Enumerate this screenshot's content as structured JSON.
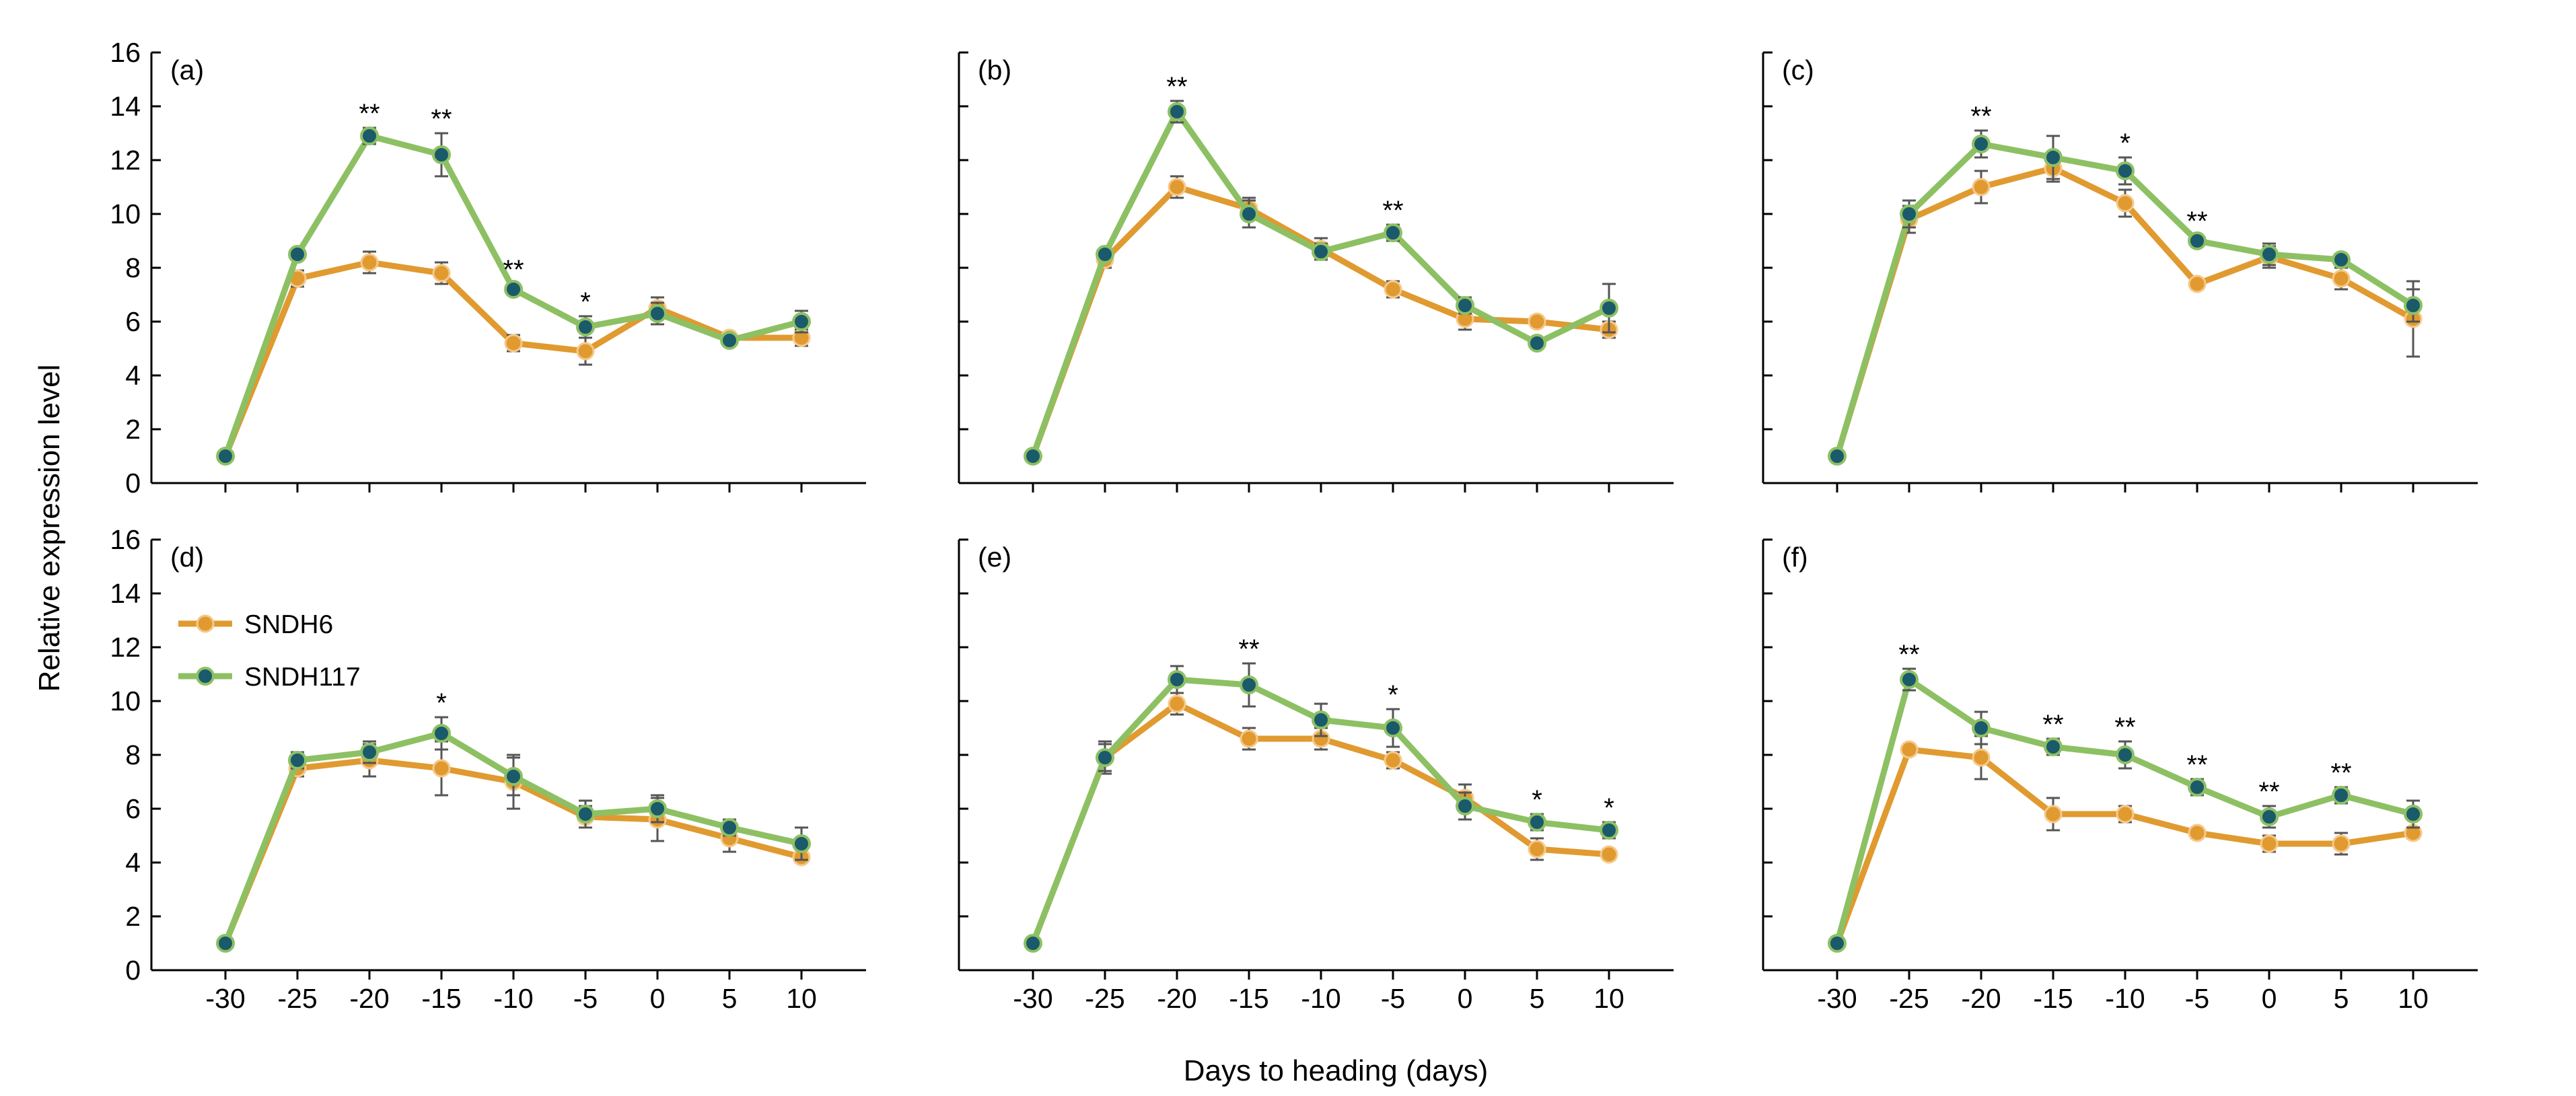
{
  "figure": {
    "ylabel": "Relative expression level",
    "xlabel": "Days to heading (days)"
  },
  "legend": [
    {
      "name": "SNDH6",
      "color": "#E09A30"
    },
    {
      "name": "SNDH117",
      "color": "#8DC063",
      "marker": "#1B5A6B"
    }
  ],
  "chart_data": [
    {
      "type": "line",
      "panel": "(a)",
      "x": [
        -30,
        -25,
        -20,
        -15,
        -10,
        -5,
        0,
        5,
        10
      ],
      "xticks": [
        "-30",
        "-25",
        "-20",
        "-15",
        "-10",
        "-5",
        "0",
        "5",
        "10"
      ],
      "ylim": [
        0,
        16
      ],
      "yticks": [
        0,
        2,
        4,
        6,
        8,
        10,
        12,
        14,
        16
      ],
      "series": [
        {
          "name": "SNDH6",
          "values": [
            1.0,
            7.6,
            8.2,
            7.8,
            5.2,
            4.9,
            6.5,
            5.4,
            5.4
          ],
          "errors": [
            0.1,
            0.3,
            0.4,
            0.4,
            0.3,
            0.5,
            0.4,
            0.2,
            0.3
          ]
        },
        {
          "name": "SNDH117",
          "values": [
            1.0,
            8.5,
            12.9,
            12.2,
            7.2,
            5.8,
            6.3,
            5.3,
            6.0
          ],
          "errors": [
            0.1,
            0.2,
            0.3,
            0.8,
            0.2,
            0.4,
            0.4,
            0.2,
            0.4
          ]
        }
      ],
      "significance": [
        {
          "x": -20,
          "label": "**"
        },
        {
          "x": -15,
          "label": "**"
        },
        {
          "x": -10,
          "label": "**"
        },
        {
          "x": -5,
          "label": "*"
        }
      ]
    },
    {
      "type": "line",
      "panel": "(b)",
      "x": [
        -30,
        -25,
        -20,
        -15,
        -10,
        -5,
        0,
        5,
        10
      ],
      "xticks": [
        "-30",
        "-25",
        "-20",
        "-15",
        "-10",
        "-5",
        "0",
        "5",
        "10"
      ],
      "ylim": [
        0,
        16
      ],
      "yticks": [
        0,
        2,
        4,
        6,
        8,
        10,
        12,
        14,
        16
      ],
      "series": [
        {
          "name": "SNDH6",
          "values": [
            1.0,
            8.3,
            11.0,
            10.2,
            8.7,
            7.2,
            6.1,
            6.0,
            5.7
          ],
          "errors": [
            0.1,
            0.3,
            0.4,
            0.4,
            0.4,
            0.3,
            0.4,
            0.2,
            0.3
          ]
        },
        {
          "name": "SNDH117",
          "values": [
            1.0,
            8.5,
            13.8,
            10.0,
            8.6,
            9.3,
            6.6,
            5.2,
            6.5
          ],
          "errors": [
            0.1,
            0.2,
            0.4,
            0.5,
            0.3,
            0.3,
            0.3,
            0.2,
            0.9
          ]
        }
      ],
      "significance": [
        {
          "x": -20,
          "label": "**"
        },
        {
          "x": -5,
          "label": "**"
        }
      ]
    },
    {
      "type": "line",
      "panel": "(c)",
      "x": [
        -30,
        -25,
        -20,
        -15,
        -10,
        -5,
        0,
        5,
        10
      ],
      "xticks": [
        "-30",
        "-25",
        "-20",
        "-15",
        "-10",
        "-5",
        "0",
        "5",
        "10"
      ],
      "ylim": [
        0,
        16
      ],
      "yticks": [
        0,
        2,
        4,
        6,
        8,
        10,
        12,
        14,
        16
      ],
      "series": [
        {
          "name": "SNDH6",
          "values": [
            1.0,
            9.8,
            11.0,
            11.7,
            10.4,
            7.4,
            8.4,
            7.6,
            6.1
          ],
          "errors": [
            0.1,
            0.5,
            0.6,
            0.5,
            0.5,
            0.2,
            0.4,
            0.4,
            1.4
          ]
        },
        {
          "name": "SNDH117",
          "values": [
            1.0,
            10.0,
            12.6,
            12.1,
            11.6,
            9.0,
            8.5,
            8.3,
            6.6
          ],
          "errors": [
            0.1,
            0.5,
            0.5,
            0.8,
            0.5,
            0.2,
            0.4,
            0.2,
            0.6
          ]
        }
      ],
      "significance": [
        {
          "x": -20,
          "label": "**"
        },
        {
          "x": -10,
          "label": "*"
        },
        {
          "x": -5,
          "label": "**"
        }
      ]
    },
    {
      "type": "line",
      "panel": "(d)",
      "x": [
        -30,
        -25,
        -20,
        -15,
        -10,
        -5,
        0,
        5,
        10
      ],
      "xticks": [
        "-30",
        "-25",
        "-20",
        "-15",
        "-10",
        "-5",
        "0",
        "5",
        "10"
      ],
      "ylim": [
        0,
        16
      ],
      "yticks": [
        0,
        2,
        4,
        6,
        8,
        10,
        12,
        14,
        16
      ],
      "series": [
        {
          "name": "SNDH6",
          "values": [
            1.0,
            7.5,
            7.8,
            7.5,
            7.0,
            5.7,
            5.6,
            4.9,
            4.2
          ],
          "errors": [
            0.1,
            0.3,
            0.6,
            1.0,
            1.0,
            0.4,
            0.8,
            0.5,
            0.2
          ]
        },
        {
          "name": "SNDH117",
          "values": [
            1.0,
            7.8,
            8.1,
            8.8,
            7.2,
            5.8,
            6.0,
            5.3,
            4.7
          ],
          "errors": [
            0.1,
            0.3,
            0.4,
            0.6,
            0.7,
            0.5,
            0.5,
            0.3,
            0.6
          ]
        }
      ],
      "significance": [
        {
          "x": -15,
          "label": "*"
        }
      ]
    },
    {
      "type": "line",
      "panel": "(e)",
      "x": [
        -30,
        -25,
        -20,
        -15,
        -10,
        -5,
        0,
        5,
        10
      ],
      "xticks": [
        "-30",
        "-25",
        "-20",
        "-15",
        "-10",
        "-5",
        "0",
        "5",
        "10"
      ],
      "ylim": [
        0,
        16
      ],
      "yticks": [
        0,
        2,
        4,
        6,
        8,
        10,
        12,
        14,
        16
      ],
      "series": [
        {
          "name": "SNDH6",
          "values": [
            1.0,
            7.9,
            9.9,
            8.6,
            8.6,
            7.8,
            6.4,
            4.5,
            4.3
          ],
          "errors": [
            0.1,
            0.6,
            0.4,
            0.4,
            0.4,
            0.3,
            0.5,
            0.4,
            0.2
          ]
        },
        {
          "name": "SNDH117",
          "values": [
            1.0,
            7.9,
            10.8,
            10.6,
            9.3,
            9.0,
            6.1,
            5.5,
            5.2
          ],
          "errors": [
            0.1,
            0.5,
            0.5,
            0.8,
            0.6,
            0.7,
            0.5,
            0.3,
            0.3
          ]
        }
      ],
      "significance": [
        {
          "x": -15,
          "label": "**"
        },
        {
          "x": -5,
          "label": "*"
        },
        {
          "x": 5,
          "label": "*"
        },
        {
          "x": 10,
          "label": "*"
        }
      ]
    },
    {
      "type": "line",
      "panel": "(f)",
      "x": [
        -30,
        -25,
        -20,
        -15,
        -10,
        -5,
        0,
        5,
        10
      ],
      "xticks": [
        "-30",
        "-25",
        "-20",
        "-15",
        "-10",
        "-5",
        "0",
        "5",
        "10"
      ],
      "ylim": [
        0,
        16
      ],
      "yticks": [
        0,
        2,
        4,
        6,
        8,
        10,
        12,
        14,
        16
      ],
      "series": [
        {
          "name": "SNDH6",
          "values": [
            1.0,
            8.2,
            7.9,
            5.8,
            5.8,
            5.1,
            4.7,
            4.7,
            5.1
          ],
          "errors": [
            0.1,
            0.2,
            0.8,
            0.6,
            0.3,
            0.2,
            0.3,
            0.4,
            0.2
          ]
        },
        {
          "name": "SNDH117",
          "values": [
            1.0,
            10.8,
            9.0,
            8.3,
            8.0,
            6.8,
            5.7,
            6.5,
            5.8
          ],
          "errors": [
            0.1,
            0.4,
            0.6,
            0.3,
            0.5,
            0.3,
            0.4,
            0.3,
            0.5
          ]
        }
      ],
      "significance": [
        {
          "x": -25,
          "label": "**"
        },
        {
          "x": -15,
          "label": "**"
        },
        {
          "x": -10,
          "label": "**"
        },
        {
          "x": -5,
          "label": "**"
        },
        {
          "x": 0,
          "label": "**"
        },
        {
          "x": 5,
          "label": "**"
        }
      ]
    }
  ]
}
